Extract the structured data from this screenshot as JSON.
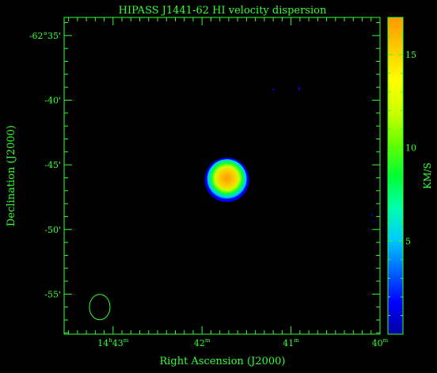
{
  "chart_data": {
    "type": "heatmap",
    "title": "HIPASS J1441-62  HI velocity dispersion",
    "xlabel": "Right Ascension (J2000)",
    "ylabel": "Declination (J2000)",
    "colorbar_label": "KM/S",
    "x_ticks": [
      {
        "label": "14h43m",
        "h": "14",
        "m": "43",
        "ra_min": 43
      },
      {
        "label": "42m",
        "m": "42",
        "ra_min": 42
      },
      {
        "label": "41m",
        "m": "41",
        "ra_min": 41
      },
      {
        "label": "40m",
        "m": "40",
        "ra_min": 40
      }
    ],
    "y_ticks": [
      {
        "label": "-62°35'",
        "dec_arcmin": -35
      },
      {
        "label": "-40'",
        "dec_arcmin": -40
      },
      {
        "label": "-45'",
        "dec_arcmin": -45
      },
      {
        "label": "-50'",
        "dec_arcmin": -50
      },
      {
        "label": "-55'",
        "dec_arcmin": -55
      }
    ],
    "xlim_ra_min": [
      43.55,
      40.0
    ],
    "ylim_dec_arcmin": [
      -58.1,
      -33.6
    ],
    "colorbar": {
      "range": [
        0,
        17
      ],
      "ticks": [
        5,
        10,
        15
      ],
      "colors": [
        "#0000a0",
        "#0000ff",
        "#0066ff",
        "#00ccff",
        "#00ffaa",
        "#00ff33",
        "#66ff00",
        "#ccff00",
        "#ffff00",
        "#ffcc00",
        "#ff9900"
      ]
    },
    "source": {
      "ra_min": 41.72,
      "dec_arcmin": -46.1,
      "peak_kms": 16.5,
      "edge_kms": 3
    },
    "beam": {
      "ra_min": 43.15,
      "dec_arcmin": -56.0,
      "shape": "ellipse"
    }
  }
}
